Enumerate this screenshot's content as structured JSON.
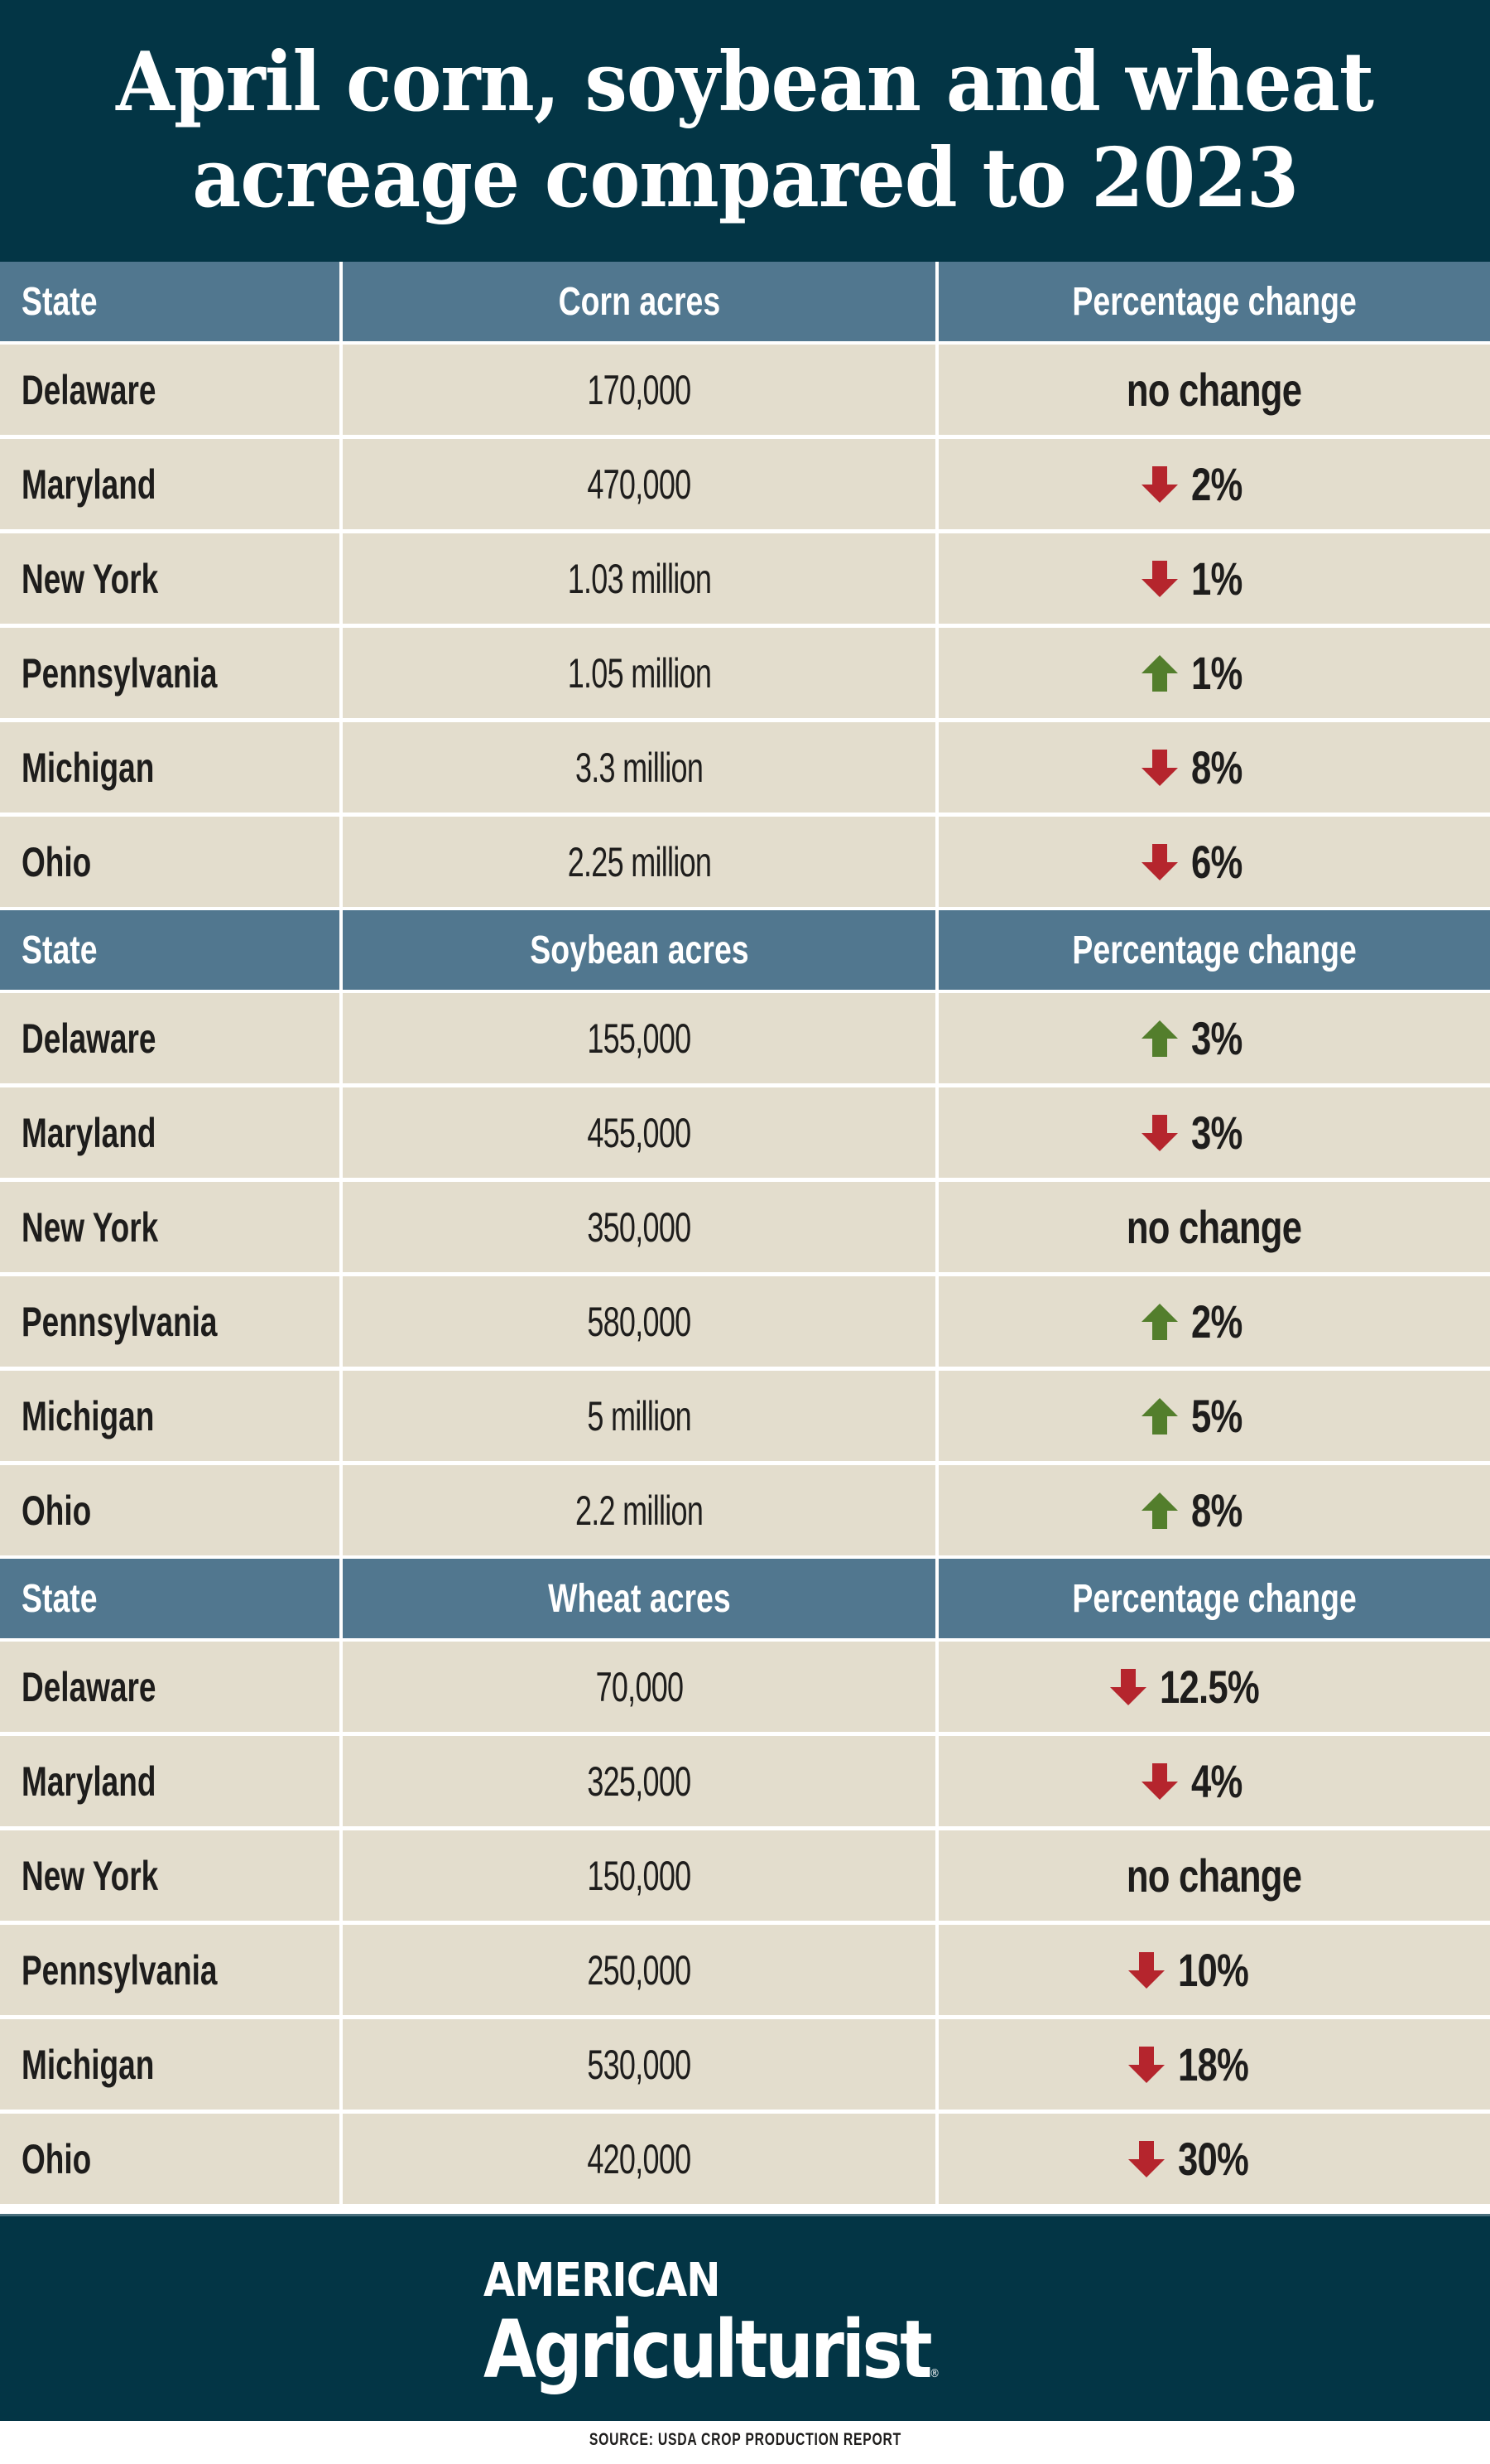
{
  "title": {
    "line1": "April corn, soybean and wheat",
    "line2": "acreage compared to 2023"
  },
  "colors": {
    "header_bg": "#033545",
    "table_header_bg": "#51778f",
    "row_bg": "#e3ddcd",
    "down_arrow": "#b5252d",
    "up_arrow": "#537e2c",
    "text": "#1e1d1c"
  },
  "sections": [
    {
      "headers": {
        "state": "State",
        "acres": "Corn acres",
        "change": "Percentage change"
      },
      "rows": [
        {
          "state": "Delaware",
          "acres": "170,000",
          "change": "no change",
          "direction": "none"
        },
        {
          "state": "Maryland",
          "acres": "470,000",
          "change": "2%",
          "direction": "down"
        },
        {
          "state": "New York",
          "acres": "1.03 million",
          "change": "1%",
          "direction": "down"
        },
        {
          "state": "Pennsylvania",
          "acres": "1.05 million",
          "change": "1%",
          "direction": "up"
        },
        {
          "state": "Michigan",
          "acres": "3.3 million",
          "change": "8%",
          "direction": "down"
        },
        {
          "state": "Ohio",
          "acres": "2.25 million",
          "change": "6%",
          "direction": "down"
        }
      ]
    },
    {
      "headers": {
        "state": "State",
        "acres": "Soybean acres",
        "change": "Percentage change"
      },
      "rows": [
        {
          "state": "Delaware",
          "acres": "155,000",
          "change": "3%",
          "direction": "up"
        },
        {
          "state": "Maryland",
          "acres": "455,000",
          "change": "3%",
          "direction": "down"
        },
        {
          "state": "New York",
          "acres": "350,000",
          "change": "no change",
          "direction": "none"
        },
        {
          "state": "Pennsylvania",
          "acres": "580,000",
          "change": "2%",
          "direction": "up"
        },
        {
          "state": "Michigan",
          "acres": "5 million",
          "change": "5%",
          "direction": "up"
        },
        {
          "state": "Ohio",
          "acres": "2.2 million",
          "change": "8%",
          "direction": "up"
        }
      ]
    },
    {
      "headers": {
        "state": "State",
        "acres": "Wheat acres",
        "change": "Percentage change"
      },
      "rows": [
        {
          "state": "Delaware",
          "acres": "70,000",
          "change": "12.5%",
          "direction": "down"
        },
        {
          "state": "Maryland",
          "acres": "325,000",
          "change": "4%",
          "direction": "down"
        },
        {
          "state": "New York",
          "acres": "150,000",
          "change": "no change",
          "direction": "none"
        },
        {
          "state": "Pennsylvania",
          "acres": "250,000",
          "change": "10%",
          "direction": "down"
        },
        {
          "state": "Michigan",
          "acres": "530,000",
          "change": "18%",
          "direction": "down"
        },
        {
          "state": "Ohio",
          "acres": "420,000",
          "change": "30%",
          "direction": "down"
        }
      ]
    }
  ],
  "footer": {
    "logo_top": "AMERICAN",
    "logo_main": "Agriculturist",
    "logo_reg": "®"
  },
  "source": "SOURCE: USDA CROP PRODUCTION REPORT"
}
